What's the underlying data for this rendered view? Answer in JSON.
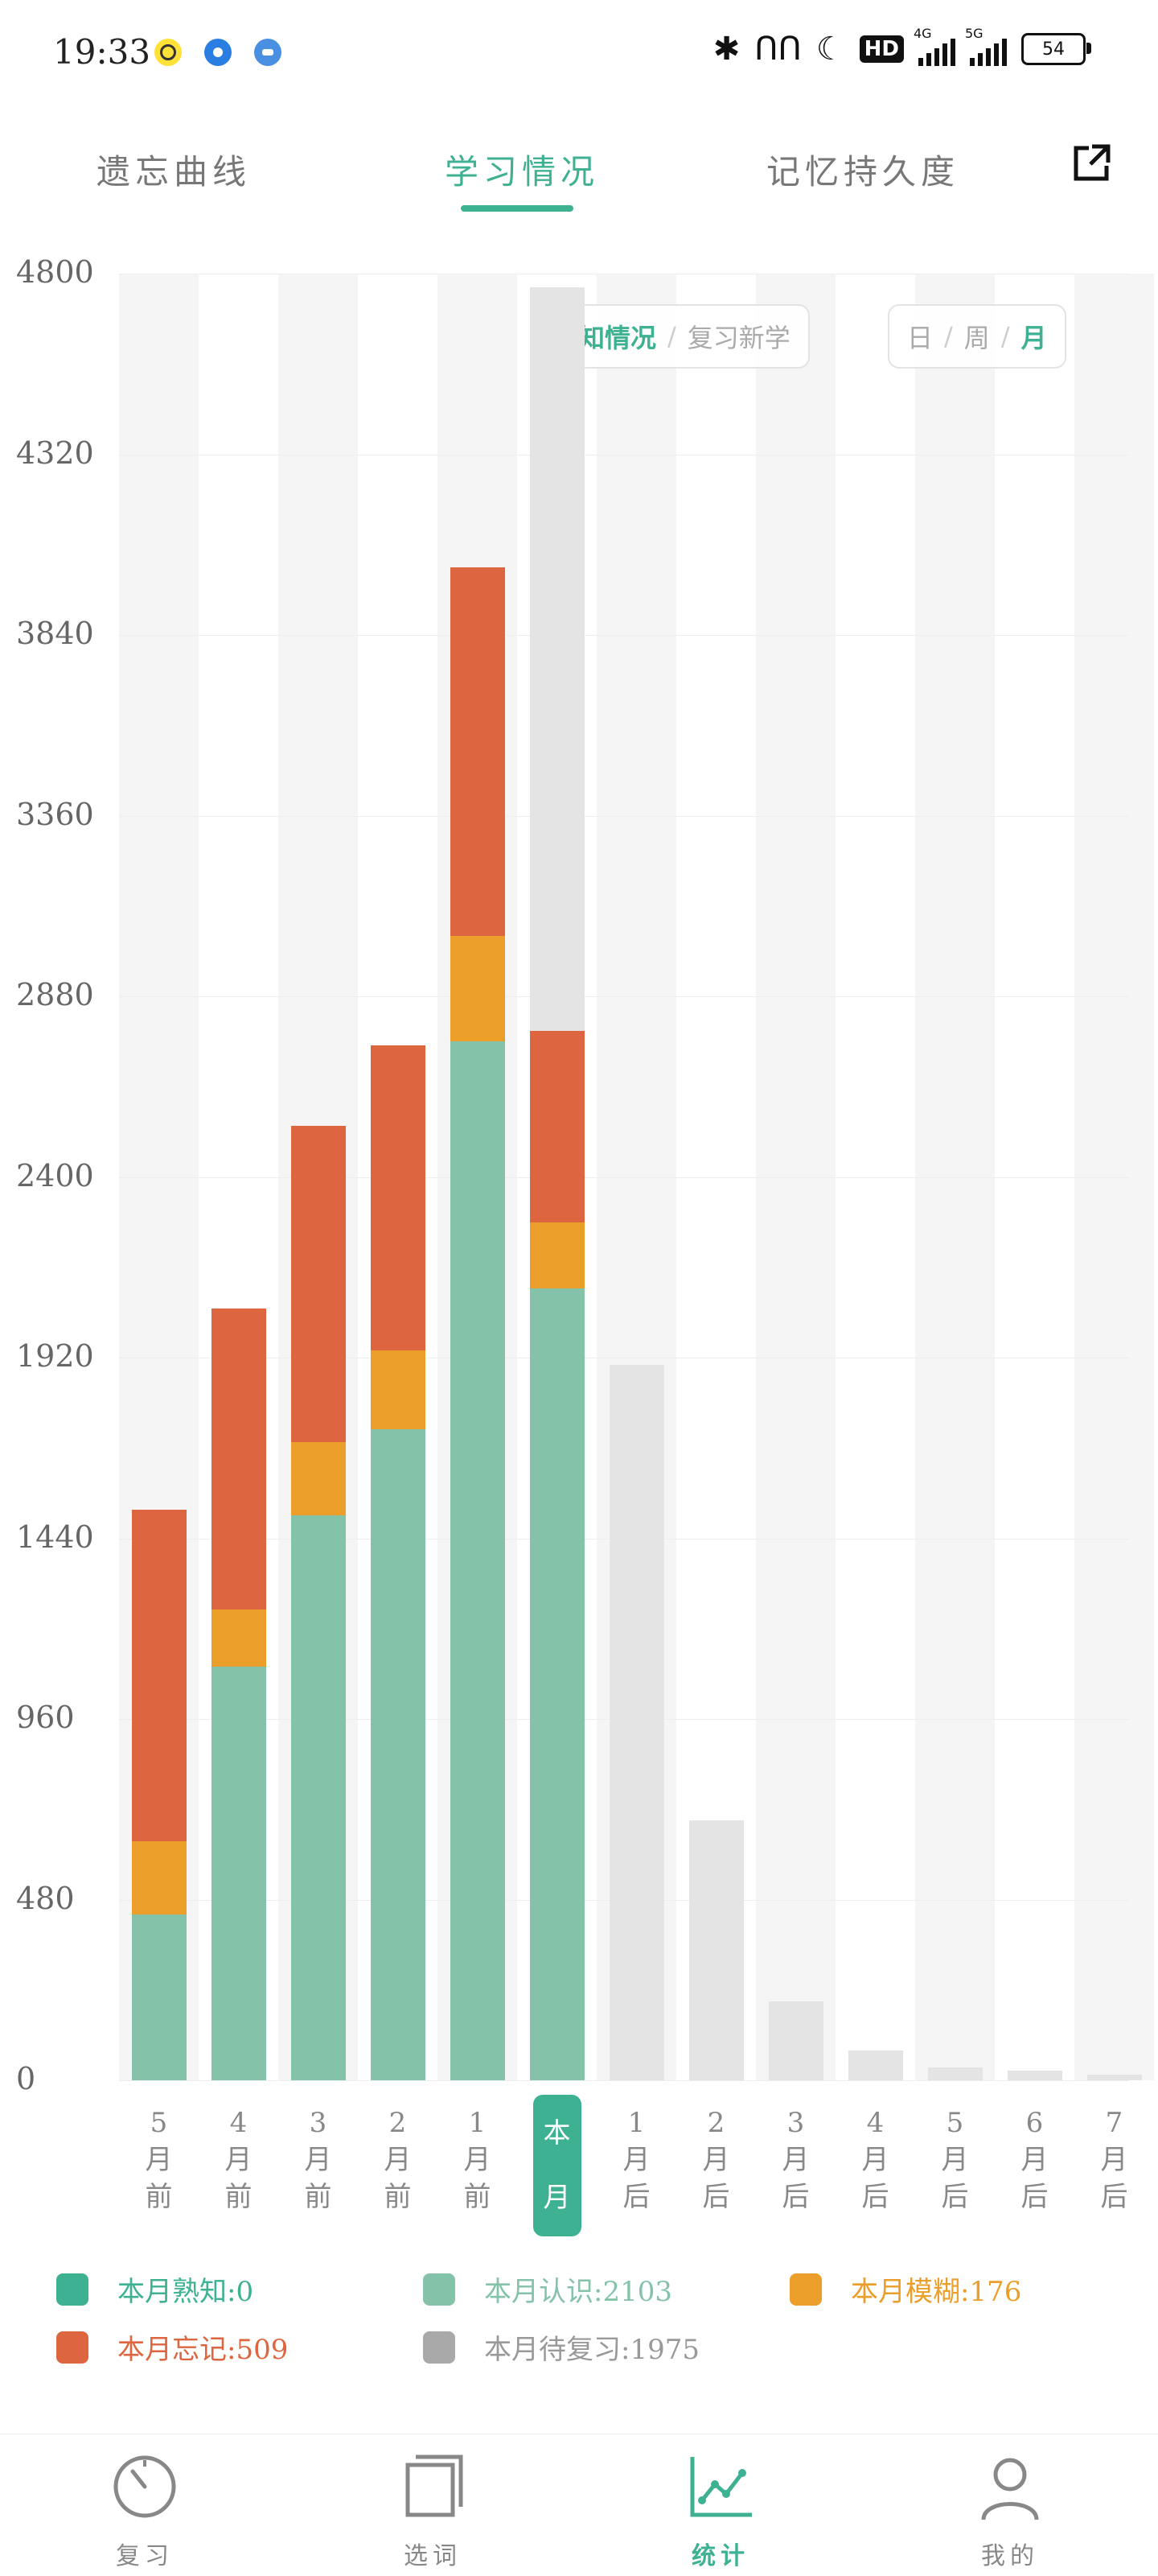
{
  "status_bar": {
    "time": "19:33",
    "network_4g": "4G",
    "network_5g": "5G",
    "hd_badge": "HD",
    "battery": "54"
  },
  "tabs": [
    {
      "label": "遗忘曲线",
      "active": false
    },
    {
      "label": "学习情况",
      "active": true
    },
    {
      "label": "记忆持久度",
      "active": false
    }
  ],
  "toggles": {
    "mode": {
      "options": [
        "认知情况",
        "复习新学"
      ],
      "selected": "认知情况"
    },
    "period": {
      "options": [
        "日",
        "周",
        "月"
      ],
      "selected": "月"
    }
  },
  "colors": {
    "accent": "#3fb193",
    "known": "#3fb193",
    "recognized": "#84c2a9",
    "fuzzy": "#eb9e2a",
    "forgotten": "#dd6640",
    "pending": "#e4e4e4",
    "column_bg": "#f5f5f5"
  },
  "chart_data": {
    "type": "bar",
    "stacked": true,
    "ylim": [
      0,
      4800
    ],
    "yticks": [
      "0",
      "480",
      "960",
      "1440",
      "1920",
      "2400",
      "2880",
      "3360",
      "3840",
      "4320",
      "4800"
    ],
    "categories": [
      [
        "5",
        "月",
        "前"
      ],
      [
        "4",
        "月",
        "前"
      ],
      [
        "3",
        "月",
        "前"
      ],
      [
        "2",
        "月",
        "前"
      ],
      [
        "1",
        "月",
        "前"
      ],
      [
        "本",
        "月"
      ],
      [
        "1",
        "月",
        "后"
      ],
      [
        "2",
        "月",
        "后"
      ],
      [
        "3",
        "月",
        "后"
      ],
      [
        "4",
        "月",
        "后"
      ],
      [
        "5",
        "月",
        "后"
      ],
      [
        "6",
        "月",
        "后"
      ],
      [
        "7",
        "月",
        "后"
      ]
    ],
    "current_index": 5,
    "series": [
      {
        "name": "熟知",
        "values": [
          0,
          0,
          0,
          0,
          0,
          0,
          0,
          0,
          0,
          0,
          0,
          0,
          0
        ]
      },
      {
        "name": "认识",
        "values": [
          440,
          1100,
          1500,
          1730,
          2760,
          2103,
          0,
          0,
          0,
          0,
          0,
          0,
          0
        ]
      },
      {
        "name": "模糊",
        "values": [
          195,
          150,
          195,
          210,
          280,
          176,
          0,
          0,
          0,
          0,
          0,
          0,
          0
        ]
      },
      {
        "name": "忘记",
        "values": [
          880,
          800,
          840,
          810,
          980,
          509,
          0,
          0,
          0,
          0,
          0,
          0,
          0
        ]
      },
      {
        "name": "待复习",
        "values": [
          0,
          0,
          0,
          0,
          0,
          1975,
          1900,
          690,
          210,
          80,
          35,
          25,
          15
        ]
      }
    ]
  },
  "legend": [
    {
      "text": "本月熟知:0",
      "color": "#3fb193",
      "text_color": "#3fb193"
    },
    {
      "text": "本月认识:2103",
      "color": "#84c2a9",
      "text_color": "#84c2a9"
    },
    {
      "text": "本月模糊:176",
      "color": "#eb9e2a",
      "text_color": "#eb9e2a"
    },
    {
      "text": "本月忘记:509",
      "color": "#dd6640",
      "text_color": "#dd6640"
    },
    {
      "text": "本月待复习:1975",
      "color": "#a9a9a9",
      "text_color": "#999999"
    }
  ],
  "bottom_nav": [
    {
      "label": "复习",
      "icon": "gauge-icon",
      "active": false
    },
    {
      "label": "选词",
      "icon": "book-icon",
      "active": false
    },
    {
      "label": "统计",
      "icon": "chart-icon",
      "active": true
    },
    {
      "label": "我的",
      "icon": "user-icon",
      "active": false
    }
  ]
}
